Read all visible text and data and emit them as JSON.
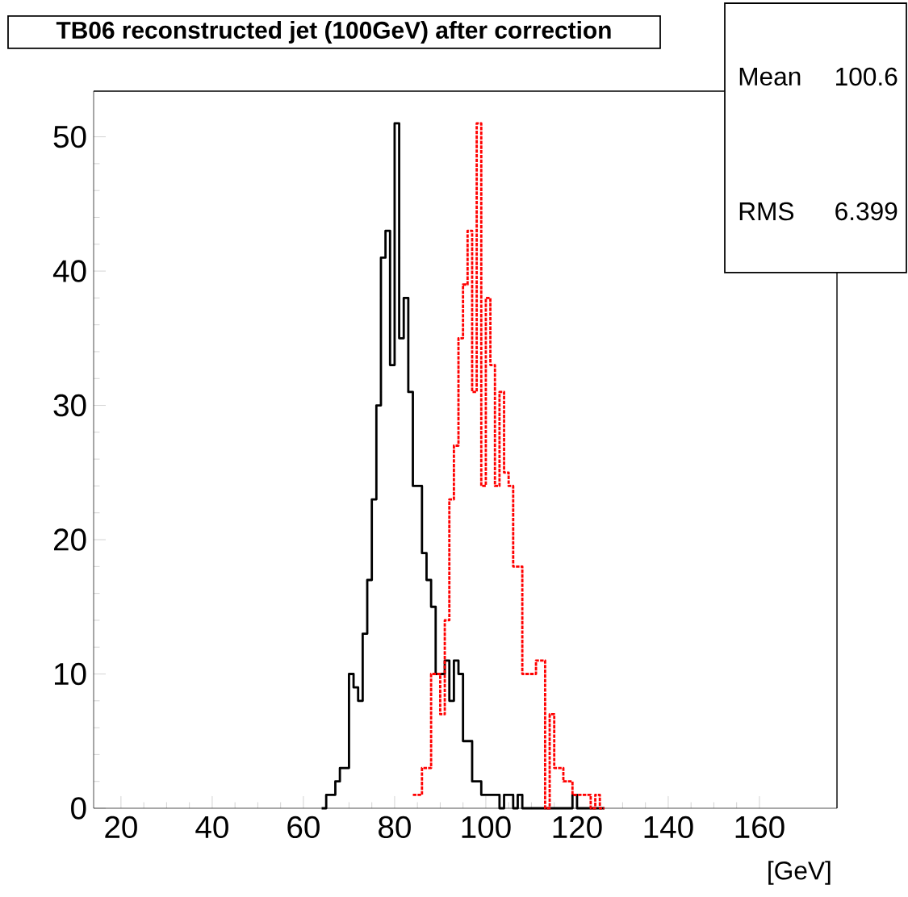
{
  "chart_data": {
    "type": "histogram",
    "title": "TB06 reconstructed jet (100GeV) after correction",
    "xlabel": "[GeV]",
    "annotations": [
      "Mean",
      "100.6",
      "RMS",
      "6.399"
    ],
    "bins": [
      64,
      65,
      66,
      67,
      68,
      69,
      70,
      71,
      72,
      73,
      74,
      75,
      76,
      77,
      78,
      79,
      80,
      81,
      82,
      83,
      84,
      85,
      86,
      87,
      88,
      89,
      90,
      91,
      92,
      93,
      94,
      95,
      96,
      97,
      98,
      99,
      100,
      101,
      102,
      103,
      104,
      105,
      106,
      107,
      108,
      109,
      110,
      111,
      112,
      113,
      114,
      115,
      116,
      117,
      118,
      119,
      120,
      121,
      122,
      123,
      124,
      125,
      126
    ],
    "series": [
      {
        "color": "#000000",
        "line_style": "solid",
        "values": [
          0,
          1,
          1,
          2,
          3,
          3,
          10,
          9,
          8,
          13,
          17,
          23,
          30,
          41,
          43,
          33,
          51,
          35,
          38,
          31,
          24,
          24,
          19,
          17,
          15,
          10,
          10,
          11,
          8,
          11,
          10,
          5,
          5,
          2,
          2,
          1,
          1,
          1,
          1,
          0,
          1,
          1,
          0,
          1,
          0,
          0,
          0,
          0,
          0,
          0,
          0,
          0,
          0,
          0,
          0,
          1,
          0,
          0,
          0,
          0,
          0,
          0
        ]
      },
      {
        "color": "#ff0000",
        "line_style": "dotted",
        "bins": [
          84,
          85,
          86,
          87,
          88,
          89,
          90,
          91,
          92,
          93,
          94,
          95,
          96,
          97,
          98,
          99,
          100,
          101,
          102,
          103,
          104,
          105,
          106,
          107,
          108,
          109,
          110,
          111,
          112,
          113,
          114,
          115,
          116,
          117,
          118,
          119,
          120,
          121,
          122,
          123,
          124,
          125,
          126
        ],
        "values": [
          1,
          1,
          3,
          3,
          10,
          10,
          7,
          14,
          23,
          27,
          35,
          39,
          43,
          31,
          51,
          24,
          38,
          33,
          24,
          31,
          25,
          24,
          18,
          18,
          10,
          10,
          10,
          11,
          11,
          0,
          7,
          3,
          3,
          2,
          2,
          1,
          1,
          1,
          1,
          0,
          1,
          0
        ]
      }
    ],
    "xlim": [
      14,
      177
    ],
    "ylim": [
      0,
      53.4
    ],
    "xticks": [
      20,
      40,
      60,
      80,
      100,
      120,
      140,
      160
    ],
    "yticks": [
      0,
      10,
      20,
      30,
      40,
      50
    ]
  }
}
